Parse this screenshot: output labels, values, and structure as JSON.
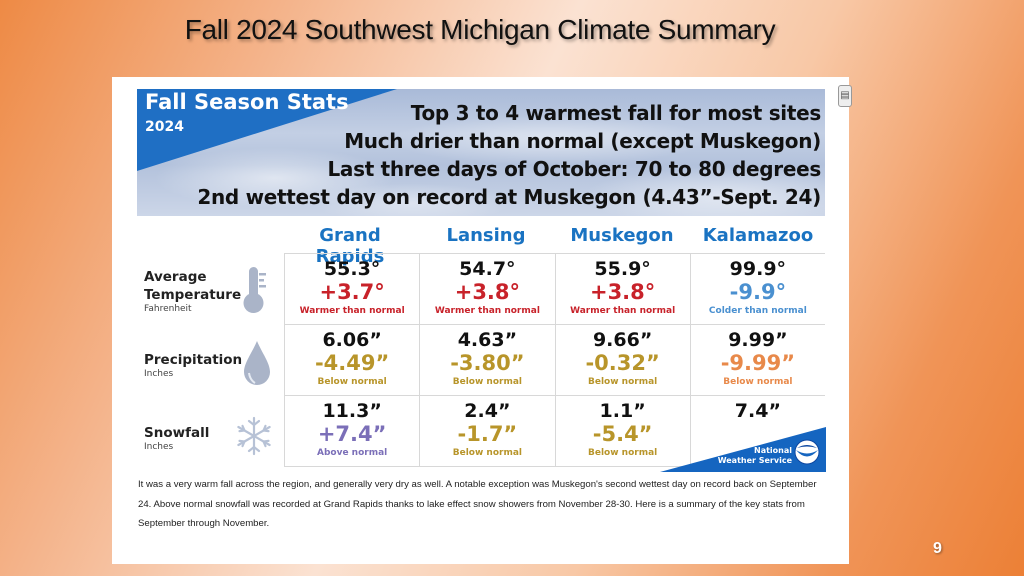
{
  "slide": {
    "title": "Fall 2024 Southwest Michigan Climate Summary",
    "page_number": "9"
  },
  "banner": {
    "title": "Fall Season Stats",
    "year": "2024",
    "headlines": [
      "Top 3 to 4 warmest fall for most sites",
      "Much drier than normal (except Muskegon)",
      "Last three days of October: 70 to 80 degrees",
      "2nd wettest day on record at Muskegon (4.43”-Sept. 24)"
    ]
  },
  "columns": [
    "Grand Rapids",
    "Lansing",
    "Muskegon",
    "Kalamazoo"
  ],
  "rows": [
    {
      "label": "Average",
      "label2": "Temperature",
      "unit": "Fahrenheit",
      "icon": "thermometer-icon",
      "cells": [
        {
          "value": "55.3°",
          "departure": "+3.7°",
          "note": "Warmer than normal",
          "color": "#c8222a"
        },
        {
          "value": "54.7°",
          "departure": "+3.8°",
          "note": "Warmer than normal",
          "color": "#c8222a"
        },
        {
          "value": "55.9°",
          "departure": "+3.8°",
          "note": "Warmer than normal",
          "color": "#c8222a"
        },
        {
          "value": "99.9°",
          "departure": "-9.9°",
          "note": "Colder than normal",
          "color": "#4a90d0"
        }
      ]
    },
    {
      "label": "Precipitation",
      "label2": "",
      "unit": "Inches",
      "icon": "water-drop-icon",
      "cells": [
        {
          "value": "6.06”",
          "departure": "-4.49”",
          "note": "Below normal",
          "color": "#b8952a"
        },
        {
          "value": "4.63”",
          "departure": "-3.80”",
          "note": "Below normal",
          "color": "#b8952a"
        },
        {
          "value": "9.66”",
          "departure": "-0.32”",
          "note": "Below normal",
          "color": "#b8952a"
        },
        {
          "value": "9.99”",
          "departure": "-9.99”",
          "note": "Below normal",
          "color": "#e8894a"
        }
      ]
    },
    {
      "label": "Snowfall",
      "label2": "",
      "unit": "Inches",
      "icon": "snowflake-icon",
      "cells": [
        {
          "value": "11.3”",
          "departure": "+7.4”",
          "note": "Above normal",
          "color": "#7b6fb8"
        },
        {
          "value": "2.4”",
          "departure": "-1.7”",
          "note": "Below normal",
          "color": "#b8952a"
        },
        {
          "value": "1.1”",
          "departure": "-5.4”",
          "note": "Below normal",
          "color": "#b8952a"
        },
        {
          "value": "7.4”",
          "departure": "",
          "note": "",
          "color": "#111111"
        }
      ]
    }
  ],
  "nws_badge": {
    "line1": "National",
    "line2": "Weather Service",
    "logo": "noaa-logo-icon"
  },
  "summary_paragraph": "It was a very warm fall across the region, and generally very dry as well. A notable exception was Muskegon's second wettest day on record back on September 24. Above normal snowfall was recorded at Grand Rapids thanks to lake effect snow showers from November 28-30. Here is a summary of the key stats from September through November.",
  "colors": {
    "header_blue": "#1a73c2",
    "banner_blue": "#1f6fc4",
    "icon_gray": "#aab4c8"
  }
}
